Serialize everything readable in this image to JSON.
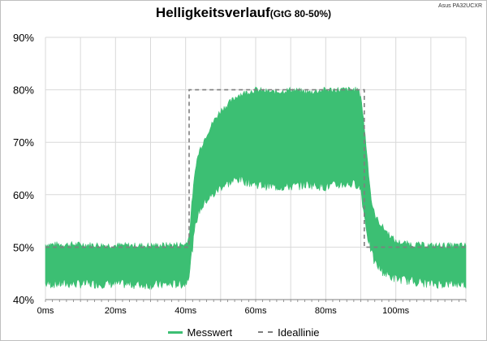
{
  "title": "Helligkeitsverlauf",
  "subtitle": "(GtG 80-50%)",
  "device": "Asus PA32UCXR",
  "colors": {
    "measured": "#3cbf73",
    "ideal": "#7f7f7f",
    "grid": "#d9d9d9"
  },
  "chart_data": {
    "type": "area",
    "title": "Helligkeitsverlauf (GtG 80-50%)",
    "x_unit": "ms",
    "xlim": [
      0,
      120
    ],
    "ylim": [
      40,
      90
    ],
    "x_ticks": [
      "0ms",
      "20ms",
      "40ms",
      "60ms",
      "80ms",
      "100ms"
    ],
    "y_ticks": [
      "40%",
      "50%",
      "60%",
      "70%",
      "80%",
      "90%"
    ],
    "x_tick_values": [
      0,
      20,
      40,
      60,
      80,
      100
    ],
    "y_tick_values": [
      40,
      50,
      60,
      70,
      80,
      90
    ],
    "grid": true,
    "legend_position": "bottom",
    "series": [
      {
        "name": "Messwert",
        "style": "band",
        "x": [
          0,
          10,
          20,
          30,
          40,
          41,
          42,
          43,
          44,
          46,
          48,
          50,
          55,
          60,
          65,
          70,
          75,
          80,
          85,
          89,
          90,
          91,
          92,
          93,
          94,
          96,
          98,
          100,
          105,
          110,
          115,
          120
        ],
        "upper": [
          50.5,
          50.5,
          50.3,
          50.3,
          50.5,
          52,
          60,
          66,
          68.5,
          71.5,
          74,
          76,
          79,
          80,
          79.5,
          80,
          79.5,
          80,
          80,
          80,
          79,
          73,
          66,
          59,
          56,
          54,
          52.5,
          51,
          50.5,
          50.3,
          50.3,
          50.3
        ],
        "lower": [
          43,
          43,
          43,
          42.8,
          43,
          45,
          50,
          55,
          57,
          59,
          60,
          61.5,
          63,
          62,
          61.5,
          61.5,
          62,
          61.5,
          62,
          62,
          61,
          56,
          52,
          49,
          47,
          45.5,
          44.5,
          44,
          43.5,
          43,
          43,
          43
        ]
      },
      {
        "name": "Ideallinie",
        "style": "dashed",
        "x": [
          0,
          41,
          41,
          91,
          91,
          120
        ],
        "y": [
          50,
          50,
          80,
          80,
          50,
          50
        ]
      }
    ]
  },
  "legend": {
    "measured": "Messwert",
    "ideal": "Ideallinie"
  }
}
